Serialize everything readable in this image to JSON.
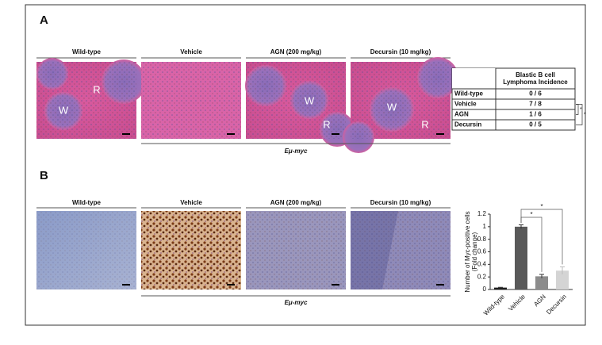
{
  "panel_a": {
    "label": "A",
    "images": [
      {
        "title": "Wild-type",
        "labels": [
          "W",
          "R"
        ]
      },
      {
        "title": "Vehicle",
        "labels": []
      },
      {
        "title": "AGN (200 mg/kg)",
        "labels": [
          "W",
          "R"
        ]
      },
      {
        "title": "Decursin (10 mg/kg)",
        "labels": [
          "W",
          "R"
        ]
      }
    ],
    "group_label": "Eμ-myc",
    "table": {
      "header": "Blastic B cell Lymphoma Incidence",
      "rows": [
        [
          "Wild-type",
          "0 / 6"
        ],
        [
          "Vehicle",
          "7 / 8"
        ],
        [
          "AGN",
          "1 / 6"
        ],
        [
          "Decursin",
          "0 / 5"
        ]
      ]
    },
    "significance": [
      "*",
      "*"
    ]
  },
  "panel_b": {
    "label": "B",
    "images": [
      {
        "title": "Wild-type"
      },
      {
        "title": "Vehicle"
      },
      {
        "title": "AGN (200 mg/kg)"
      },
      {
        "title": "Decursin (10 mg/kg)"
      }
    ],
    "group_label": "Eμ-myc"
  },
  "chart_data": {
    "type": "bar",
    "ylabel": [
      "Number of Myc-positive cells",
      "(Fold change)"
    ],
    "categories": [
      "Wild-type",
      "Vehicle",
      "AGN",
      "Decursin"
    ],
    "values": [
      0.03,
      1.0,
      0.21,
      0.3
    ],
    "errors": [
      0.005,
      0.03,
      0.03,
      0.06
    ],
    "colors": [
      "#1e1e1e",
      "#595959",
      "#8c8c8c",
      "#d4d4d4"
    ],
    "ylim": [
      0,
      1.2
    ],
    "yticks": [
      0,
      0.2,
      0.4,
      0.6,
      0.8,
      1,
      1.2
    ],
    "annotations": [
      {
        "from": 1,
        "to": 2,
        "text": "*"
      },
      {
        "from": 1,
        "to": 3,
        "text": "*"
      }
    ]
  }
}
